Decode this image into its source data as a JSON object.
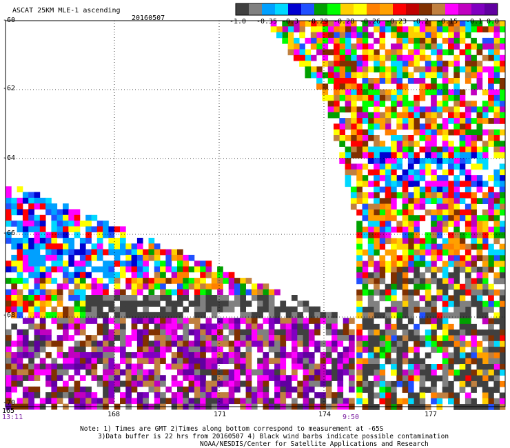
{
  "header": {
    "title": "ASCAT 25KM MLE-1 ascending",
    "date": "20160507"
  },
  "colorbar": {
    "colors": [
      "#404040",
      "#808080",
      "#00a0ff",
      "#00d8ff",
      "#0000d0",
      "#2050ff",
      "#00a000",
      "#00ff00",
      "#ffd000",
      "#ffff00",
      "#ff8000",
      "#ffa000",
      "#ff0000",
      "#c00000",
      "#803000",
      "#c08040",
      "#ff00ff",
      "#c000c0",
      "#8000c0",
      "#6000a0"
    ],
    "tick_labels": [
      "-1.0",
      "-0.35",
      "-0.3",
      "-0.29",
      "-0.28",
      "-0.26",
      "-0.23",
      "-0.2",
      "-0.15",
      "-0.1",
      "0.0"
    ]
  },
  "axes": {
    "lat_labels": [
      "-60",
      "-62",
      "-64",
      "-66",
      "-68",
      "-70"
    ],
    "lon_labels": [
      "165",
      "168",
      "171",
      "174",
      "177"
    ],
    "time_labels": [
      "13:11",
      "9:50"
    ]
  },
  "notes": {
    "line1": "Note: 1) Times are GMT 2)Times along bottom correspond to measurement at -65S",
    "line2": "3)Data buffer is 22 hrs from 20160507 4) Black wind barbs indicate possible contamination",
    "line3": "NOAA/NESDIS/Center for Satellite Applications and Research"
  }
}
